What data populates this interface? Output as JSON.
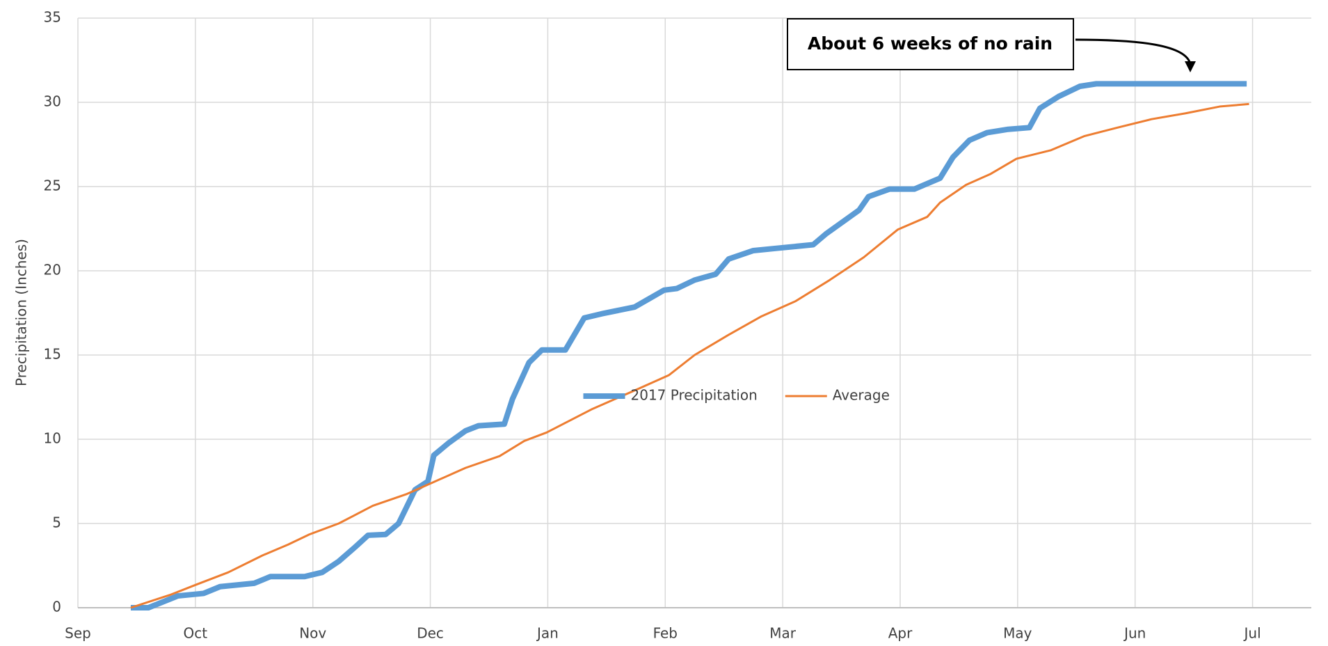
{
  "chart_data": {
    "type": "line",
    "y_label": "Precipitation (Inches)",
    "annotation": "About 6 weeks of no rain",
    "xlim": [
      0,
      10.5
    ],
    "xticks": [
      {
        "value": 0,
        "label": "Sep"
      },
      {
        "value": 1,
        "label": "Oct"
      },
      {
        "value": 2,
        "label": "Nov"
      },
      {
        "value": 3,
        "label": "Dec"
      },
      {
        "value": 4,
        "label": "Jan"
      },
      {
        "value": 5,
        "label": "Feb"
      },
      {
        "value": 6,
        "label": "Mar"
      },
      {
        "value": 7,
        "label": "Apr"
      },
      {
        "value": 8,
        "label": "May"
      },
      {
        "value": 9,
        "label": "Jun"
      },
      {
        "value": 10,
        "label": "Jul"
      }
    ],
    "ylim": [
      0,
      35
    ],
    "yticks": [
      0,
      5,
      10,
      15,
      20,
      25,
      30,
      35
    ],
    "grid": true,
    "legend": "center",
    "series": [
      {
        "name": "2017 Precipitation",
        "color": "#5b9bd5",
        "width": 8,
        "x": [
          0.45,
          0.6,
          0.85,
          1.07,
          1.21,
          1.5,
          1.64,
          1.93,
          2.08,
          2.22,
          2.36,
          2.47,
          2.62,
          2.73,
          2.87,
          2.98,
          3.03,
          3.16,
          3.3,
          3.41,
          3.63,
          3.7,
          3.84,
          3.95,
          4.15,
          4.31,
          4.46,
          4.74,
          4.89,
          4.99,
          5.1,
          5.25,
          5.43,
          5.54,
          5.75,
          5.97,
          6.26,
          6.37,
          6.55,
          6.65,
          6.73,
          6.91,
          7.12,
          7.34,
          7.45,
          7.59,
          7.74,
          7.92,
          8.1,
          8.19,
          8.35,
          8.53,
          8.67,
          9.95
        ],
        "values": [
          0,
          0,
          0.7,
          0.85,
          1.25,
          1.45,
          1.85,
          1.85,
          2.1,
          2.75,
          3.6,
          4.3,
          4.35,
          5.0,
          7.0,
          7.5,
          9.05,
          9.8,
          10.5,
          10.8,
          10.9,
          12.4,
          14.55,
          15.3,
          15.3,
          17.2,
          17.45,
          17.85,
          18.45,
          18.85,
          18.95,
          19.45,
          19.8,
          20.7,
          21.2,
          21.35,
          21.55,
          22.2,
          23.1,
          23.6,
          24.4,
          24.85,
          24.85,
          25.5,
          26.75,
          27.75,
          28.2,
          28.4,
          28.5,
          29.65,
          30.35,
          30.95,
          31.1,
          31.1
        ]
      },
      {
        "name": "Average",
        "color": "#ed7d31",
        "width": 3,
        "x": [
          0.45,
          0.78,
          1.0,
          1.28,
          1.57,
          1.79,
          1.97,
          2.22,
          2.51,
          2.8,
          3.01,
          3.3,
          3.59,
          3.8,
          3.99,
          4.38,
          4.74,
          5.03,
          5.25,
          5.54,
          5.82,
          6.11,
          6.4,
          6.69,
          6.98,
          7.23,
          7.34,
          7.56,
          7.77,
          7.99,
          8.28,
          8.57,
          8.85,
          9.14,
          9.43,
          9.72,
          9.97
        ],
        "values": [
          0,
          0.75,
          1.35,
          2.1,
          3.1,
          3.75,
          4.35,
          5.0,
          6.05,
          6.75,
          7.4,
          8.3,
          9.0,
          9.9,
          10.4,
          11.8,
          12.9,
          13.8,
          15.0,
          16.2,
          17.3,
          18.2,
          19.45,
          20.8,
          22.45,
          23.2,
          24.05,
          25.1,
          25.75,
          26.65,
          27.15,
          28.0,
          28.5,
          29.0,
          29.35,
          29.75,
          29.9
        ]
      }
    ]
  }
}
